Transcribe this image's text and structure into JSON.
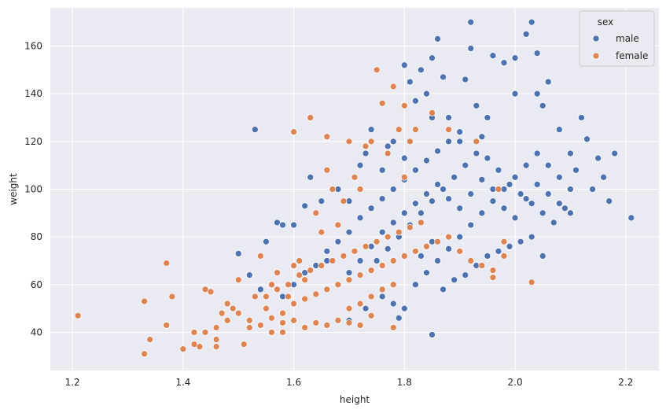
{
  "chart_data": {
    "type": "scatter",
    "xlabel": "height",
    "ylabel": "weight",
    "xlim": [
      1.16,
      2.26
    ],
    "ylim": [
      24,
      176
    ],
    "xticks": [
      1.2,
      1.4,
      1.6,
      1.8,
      2.0,
      2.2
    ],
    "xtick_labels": [
      "1.2",
      "1.4",
      "1.6",
      "1.8",
      "2.0",
      "2.2"
    ],
    "yticks": [
      40,
      60,
      80,
      100,
      120,
      140,
      160
    ],
    "ytick_labels": [
      "40",
      "60",
      "80",
      "100",
      "120",
      "140",
      "160"
    ],
    "grid": true,
    "background": "#eaeaf2",
    "legend": {
      "title": "sex",
      "placement": "top-right"
    },
    "series": [
      {
        "name": "male",
        "color": "#4c72b0",
        "points": [
          [
            1.53,
            125
          ],
          [
            1.5,
            73
          ],
          [
            1.52,
            64
          ],
          [
            1.54,
            58
          ],
          [
            1.55,
            78
          ],
          [
            1.57,
            86
          ],
          [
            1.58,
            85
          ],
          [
            1.6,
            85
          ],
          [
            1.62,
            93
          ],
          [
            1.63,
            105
          ],
          [
            1.65,
            95
          ],
          [
            1.68,
            100
          ],
          [
            1.7,
            95
          ],
          [
            1.72,
            110
          ],
          [
            1.73,
            115
          ],
          [
            1.74,
            125
          ],
          [
            1.76,
            108
          ],
          [
            1.77,
            118
          ],
          [
            1.78,
            120
          ],
          [
            1.8,
            113
          ],
          [
            1.8,
            152
          ],
          [
            1.81,
            145
          ],
          [
            1.82,
            137
          ],
          [
            1.83,
            150
          ],
          [
            1.84,
            140
          ],
          [
            1.85,
            130
          ],
          [
            1.85,
            155
          ],
          [
            1.86,
            163
          ],
          [
            1.87,
            147
          ],
          [
            1.88,
            130
          ],
          [
            1.9,
            120
          ],
          [
            1.91,
            146
          ],
          [
            1.92,
            170
          ],
          [
            1.92,
            159
          ],
          [
            1.93,
            135
          ],
          [
            1.94,
            122
          ],
          [
            1.95,
            130
          ],
          [
            1.96,
            156
          ],
          [
            1.98,
            153
          ],
          [
            2.0,
            140
          ],
          [
            2.0,
            155
          ],
          [
            2.02,
            165
          ],
          [
            2.03,
            170
          ],
          [
            2.04,
            157
          ],
          [
            2.04,
            140
          ],
          [
            2.05,
            135
          ],
          [
            2.06,
            145
          ],
          [
            2.08,
            125
          ],
          [
            2.1,
            115
          ],
          [
            2.12,
            130
          ],
          [
            2.13,
            121
          ],
          [
            2.15,
            113
          ],
          [
            2.16,
            105
          ],
          [
            2.18,
            115
          ],
          [
            2.14,
            100
          ],
          [
            2.17,
            95
          ],
          [
            2.21,
            88
          ],
          [
            1.85,
            39
          ],
          [
            1.79,
            46
          ],
          [
            1.8,
            50
          ],
          [
            1.7,
            45
          ],
          [
            1.73,
            50
          ],
          [
            1.76,
            55
          ],
          [
            1.78,
            52
          ],
          [
            1.82,
            60
          ],
          [
            1.84,
            65
          ],
          [
            1.86,
            70
          ],
          [
            1.88,
            75
          ],
          [
            1.9,
            80
          ],
          [
            1.92,
            85
          ],
          [
            1.94,
            90
          ],
          [
            1.96,
            95
          ],
          [
            1.98,
            100
          ],
          [
            2.0,
            105
          ],
          [
            2.02,
            110
          ],
          [
            2.04,
            115
          ],
          [
            2.06,
            110
          ],
          [
            2.08,
            105
          ],
          [
            2.1,
            100
          ],
          [
            2.09,
            92
          ],
          [
            2.05,
            72
          ],
          [
            2.03,
            80
          ],
          [
            2.01,
            78
          ],
          [
            1.99,
            76
          ],
          [
            1.97,
            74
          ],
          [
            1.95,
            72
          ],
          [
            1.93,
            68
          ],
          [
            1.91,
            64
          ],
          [
            1.89,
            62
          ],
          [
            1.87,
            58
          ],
          [
            1.75,
            70
          ],
          [
            1.77,
            75
          ],
          [
            1.79,
            80
          ],
          [
            1.81,
            85
          ],
          [
            1.83,
            90
          ],
          [
            1.85,
            95
          ],
          [
            1.87,
            100
          ],
          [
            1.89,
            105
          ],
          [
            1.91,
            110
          ],
          [
            1.93,
            115
          ],
          [
            1.95,
            113
          ],
          [
            1.97,
            108
          ],
          [
            1.99,
            102
          ],
          [
            2.01,
            98
          ],
          [
            2.03,
            94
          ],
          [
            2.05,
            90
          ],
          [
            2.07,
            86
          ],
          [
            1.66,
            70
          ],
          [
            1.68,
            78
          ],
          [
            1.7,
            82
          ],
          [
            1.72,
            88
          ],
          [
            1.74,
            92
          ],
          [
            1.76,
            96
          ],
          [
            1.78,
            100
          ],
          [
            1.8,
            104
          ],
          [
            1.82,
            108
          ],
          [
            1.84,
            112
          ],
          [
            1.86,
            116
          ],
          [
            1.88,
            120
          ],
          [
            1.9,
            124
          ],
          [
            1.58,
            55
          ],
          [
            1.6,
            60
          ],
          [
            1.62,
            65
          ],
          [
            1.64,
            68
          ],
          [
            1.66,
            74
          ],
          [
            1.68,
            60
          ],
          [
            1.7,
            65
          ],
          [
            1.72,
            70
          ],
          [
            1.74,
            76
          ],
          [
            1.76,
            82
          ],
          [
            1.78,
            86
          ],
          [
            1.8,
            90
          ],
          [
            1.82,
            94
          ],
          [
            1.84,
            98
          ],
          [
            1.86,
            102
          ],
          [
            1.88,
            96
          ],
          [
            1.9,
            92
          ],
          [
            1.92,
            98
          ],
          [
            1.94,
            104
          ],
          [
            1.96,
            100
          ],
          [
            1.98,
            92
          ],
          [
            2.0,
            88
          ],
          [
            2.02,
            96
          ],
          [
            2.04,
            102
          ],
          [
            2.06,
            98
          ],
          [
            2.08,
            94
          ],
          [
            2.1,
            90
          ],
          [
            2.11,
            108
          ],
          [
            1.83,
            72
          ],
          [
            1.85,
            78
          ]
        ]
      },
      {
        "name": "female",
        "color": "#dd8452",
        "points": [
          [
            1.21,
            47
          ],
          [
            1.33,
            31
          ],
          [
            1.33,
            53
          ],
          [
            1.34,
            37
          ],
          [
            1.37,
            69
          ],
          [
            1.37,
            43
          ],
          [
            1.38,
            55
          ],
          [
            1.4,
            33
          ],
          [
            1.42,
            35
          ],
          [
            1.43,
            34
          ],
          [
            1.44,
            58
          ],
          [
            1.45,
            57
          ],
          [
            1.46,
            34
          ],
          [
            1.46,
            37
          ],
          [
            1.47,
            48
          ],
          [
            1.48,
            45
          ],
          [
            1.49,
            50
          ],
          [
            1.5,
            62
          ],
          [
            1.51,
            35
          ],
          [
            1.52,
            45
          ],
          [
            1.53,
            55
          ],
          [
            1.54,
            72
          ],
          [
            1.55,
            50
          ],
          [
            1.56,
            60
          ],
          [
            1.57,
            65
          ],
          [
            1.58,
            48
          ],
          [
            1.59,
            55
          ],
          [
            1.6,
            124
          ],
          [
            1.6,
            68
          ],
          [
            1.61,
            70
          ],
          [
            1.62,
            62
          ],
          [
            1.63,
            130
          ],
          [
            1.64,
            90
          ],
          [
            1.65,
            82
          ],
          [
            1.66,
            122
          ],
          [
            1.66,
            108
          ],
          [
            1.67,
            100
          ],
          [
            1.68,
            85
          ],
          [
            1.69,
            95
          ],
          [
            1.7,
            120
          ],
          [
            1.71,
            105
          ],
          [
            1.72,
            100
          ],
          [
            1.73,
            118
          ],
          [
            1.74,
            120
          ],
          [
            1.75,
            150
          ],
          [
            1.76,
            136
          ],
          [
            1.77,
            115
          ],
          [
            1.78,
            143
          ],
          [
            1.79,
            125
          ],
          [
            1.8,
            105
          ],
          [
            1.8,
            135
          ],
          [
            1.81,
            120
          ],
          [
            1.82,
            125
          ],
          [
            1.85,
            132
          ],
          [
            1.88,
            125
          ],
          [
            1.93,
            120
          ],
          [
            1.97,
            100
          ],
          [
            1.98,
            78
          ],
          [
            2.03,
            61
          ],
          [
            1.96,
            63
          ],
          [
            1.78,
            42
          ],
          [
            1.74,
            47
          ],
          [
            1.72,
            43
          ],
          [
            1.7,
            44
          ],
          [
            1.68,
            45
          ],
          [
            1.66,
            43
          ],
          [
            1.64,
            44
          ],
          [
            1.62,
            42
          ],
          [
            1.6,
            45
          ],
          [
            1.58,
            44
          ],
          [
            1.56,
            46
          ],
          [
            1.54,
            43
          ],
          [
            1.52,
            42
          ],
          [
            1.55,
            55
          ],
          [
            1.57,
            58
          ],
          [
            1.59,
            60
          ],
          [
            1.61,
            64
          ],
          [
            1.63,
            66
          ],
          [
            1.65,
            68
          ],
          [
            1.67,
            70
          ],
          [
            1.69,
            72
          ],
          [
            1.71,
            74
          ],
          [
            1.73,
            76
          ],
          [
            1.75,
            78
          ],
          [
            1.77,
            80
          ],
          [
            1.79,
            82
          ],
          [
            1.81,
            84
          ],
          [
            1.83,
            86
          ],
          [
            1.6,
            52
          ],
          [
            1.62,
            54
          ],
          [
            1.64,
            56
          ],
          [
            1.66,
            58
          ],
          [
            1.68,
            60
          ],
          [
            1.7,
            62
          ],
          [
            1.72,
            64
          ],
          [
            1.74,
            66
          ],
          [
            1.76,
            68
          ],
          [
            1.78,
            70
          ],
          [
            1.8,
            72
          ],
          [
            1.82,
            74
          ],
          [
            1.84,
            76
          ],
          [
            1.86,
            78
          ],
          [
            1.88,
            80
          ],
          [
            1.9,
            74
          ],
          [
            1.92,
            70
          ],
          [
            1.94,
            68
          ],
          [
            1.96,
            66
          ],
          [
            1.98,
            72
          ],
          [
            1.5,
            48
          ],
          [
            1.48,
            52
          ],
          [
            1.46,
            42
          ],
          [
            1.44,
            40
          ],
          [
            1.42,
            40
          ],
          [
            1.56,
            40
          ],
          [
            1.58,
            40
          ],
          [
            1.7,
            50
          ],
          [
            1.72,
            52
          ],
          [
            1.74,
            55
          ],
          [
            1.76,
            58
          ],
          [
            1.78,
            60
          ]
        ]
      }
    ]
  }
}
